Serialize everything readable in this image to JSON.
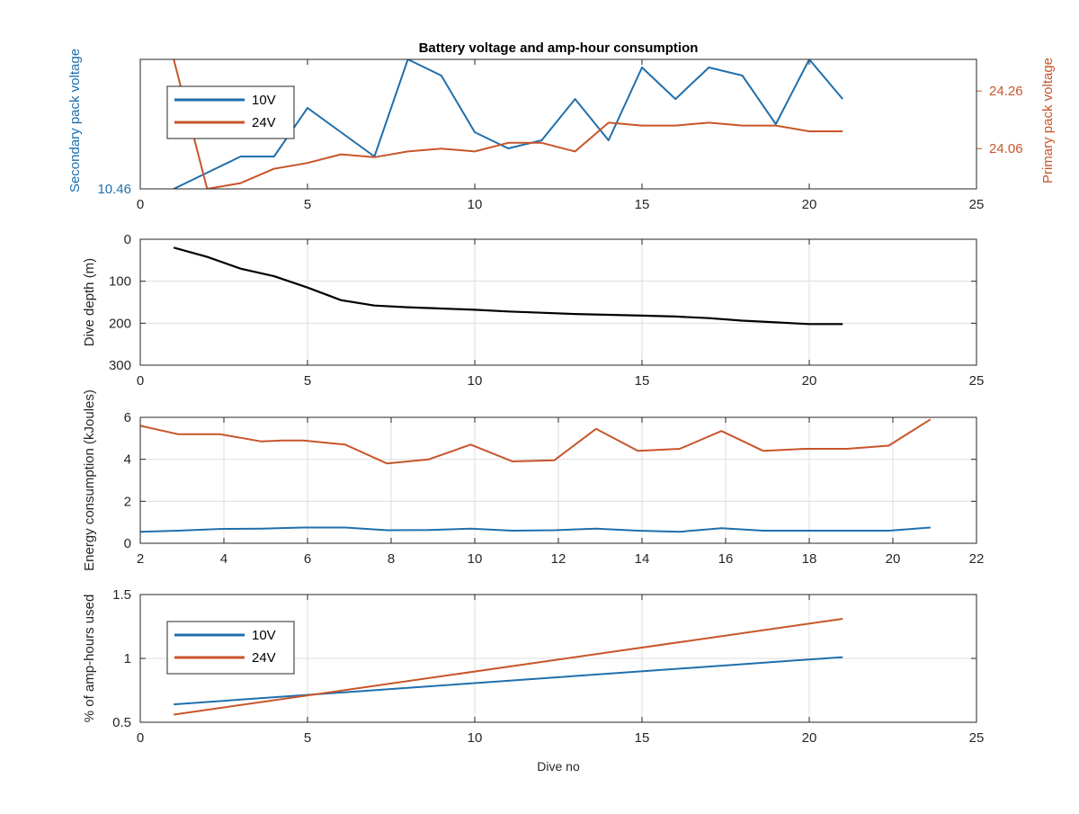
{
  "figure": {
    "title": "Battery voltage and amp-hour consumption",
    "xlabel": "Dive no"
  },
  "colors": {
    "series_10v": "#1f6fad",
    "series_24v": "#c8552a",
    "depth": "#000000",
    "axis": "#262626",
    "grid": "#dedede"
  },
  "chart_data": [
    {
      "id": "voltage",
      "type": "line",
      "title": "Battery voltage and amp-hour consumption",
      "xlim": [
        0,
        25
      ],
      "xticks": [
        "0",
        "5",
        "10",
        "15",
        "20",
        "25"
      ],
      "ylabel_left": "Secondary pack voltage",
      "ylabel_right": "Primary pack voltage",
      "ylim_left": [
        10.46,
        10.62
      ],
      "yticks_left": [
        "10.46"
      ],
      "ylim_right": [
        23.92,
        24.37
      ],
      "yticks_right": [
        "24.06",
        "24.26"
      ],
      "grid": false,
      "legend": {
        "position": "top-left",
        "entries": [
          "10V",
          "24V"
        ]
      },
      "series": [
        {
          "name": "10V",
          "axis": "left",
          "x": [
            1,
            2,
            3,
            4,
            5,
            6,
            7,
            8,
            9,
            10,
            11,
            12,
            13,
            14,
            15,
            16,
            17,
            18,
            19,
            20,
            21
          ],
          "y": [
            10.46,
            10.48,
            10.5,
            10.5,
            10.56,
            10.53,
            10.5,
            10.62,
            10.6,
            10.53,
            10.51,
            10.52,
            10.571,
            10.52,
            10.61,
            10.571,
            10.61,
            10.6,
            10.54,
            10.62,
            10.571
          ]
        },
        {
          "name": "24V",
          "axis": "right",
          "x": [
            1,
            2,
            3,
            4,
            5,
            6,
            7,
            8,
            9,
            10,
            11,
            12,
            13,
            14,
            15,
            16,
            17,
            18,
            19,
            20,
            21
          ],
          "y": [
            24.37,
            23.92,
            23.94,
            23.99,
            24.01,
            24.04,
            24.03,
            24.05,
            24.06,
            24.05,
            24.08,
            24.08,
            24.05,
            24.15,
            24.14,
            24.14,
            24.15,
            24.14,
            24.14,
            24.12,
            24.12
          ]
        }
      ]
    },
    {
      "id": "depth",
      "type": "line",
      "xlim": [
        0,
        25
      ],
      "xticks": [
        "0",
        "5",
        "10",
        "15",
        "20",
        "25"
      ],
      "ylabel": "Dive depth (m)",
      "ylim": [
        0,
        300
      ],
      "yreverse": true,
      "yticks": [
        "0",
        "100",
        "200",
        "300"
      ],
      "grid": true,
      "series": [
        {
          "x": [
            1,
            2,
            3,
            4,
            5,
            6,
            7,
            8,
            9,
            10,
            11,
            12,
            13,
            14,
            15,
            16,
            17,
            18,
            19,
            20,
            21
          ],
          "y": [
            20,
            42,
            70,
            88,
            115,
            145,
            158,
            162,
            165,
            168,
            172,
            175,
            178,
            180,
            182,
            184,
            188,
            194,
            198,
            202,
            202
          ]
        }
      ]
    },
    {
      "id": "energy",
      "type": "line",
      "xlim": [
        2,
        22
      ],
      "xticks": [
        "2",
        "4",
        "6",
        "8",
        "10",
        "12",
        "14",
        "16",
        "18",
        "20",
        "22"
      ],
      "ylabel": "Energy consumption (kJoules)",
      "ylim": [
        0,
        6
      ],
      "yticks": [
        "0",
        "2",
        "4",
        "6"
      ],
      "grid": true,
      "series": [
        {
          "color": "series_24v",
          "x": [
            2,
            2.9,
            3.9,
            4.9,
            5.4,
            5.9,
            6.9,
            7.9,
            8.9,
            9.9,
            10.9,
            11.9,
            12.9,
            13.9,
            14.9,
            15.9,
            16.9,
            17.9,
            18.9,
            19.9,
            20.9
          ],
          "y": [
            5.6,
            5.2,
            5.2,
            4.85,
            4.9,
            4.9,
            4.7,
            3.8,
            4.0,
            4.7,
            3.9,
            3.95,
            5.45,
            4.4,
            4.5,
            5.35,
            4.4,
            4.5,
            4.5,
            4.65,
            5.9
          ]
        },
        {
          "color": "series_10v",
          "x": [
            2,
            2.9,
            3.9,
            4.9,
            5.9,
            6.9,
            7.9,
            8.9,
            9.9,
            10.9,
            11.9,
            12.9,
            13.9,
            14.9,
            15.9,
            16.9,
            17.9,
            18.9,
            19.9,
            20.9
          ],
          "y": [
            0.55,
            0.6,
            0.68,
            0.7,
            0.75,
            0.75,
            0.62,
            0.63,
            0.7,
            0.6,
            0.62,
            0.7,
            0.6,
            0.55,
            0.72,
            0.6,
            0.6,
            0.6,
            0.6,
            0.75
          ]
        }
      ]
    },
    {
      "id": "amphours",
      "type": "line",
      "xlim": [
        0,
        25
      ],
      "xticks": [
        "0",
        "5",
        "10",
        "15",
        "20",
        "25"
      ],
      "ylabel": "% of amp-hours used",
      "ylim": [
        0.5,
        1.5
      ],
      "yticks": [
        "0.5",
        "1",
        "1.5"
      ],
      "grid": true,
      "legend": {
        "position": "top-left",
        "entries": [
          "10V",
          "24V"
        ]
      },
      "series": [
        {
          "name": "10V",
          "x": [
            1,
            21
          ],
          "y": [
            0.64,
            1.01
          ]
        },
        {
          "name": "24V",
          "x": [
            1,
            21
          ],
          "y": [
            0.56,
            1.31
          ]
        }
      ]
    }
  ]
}
